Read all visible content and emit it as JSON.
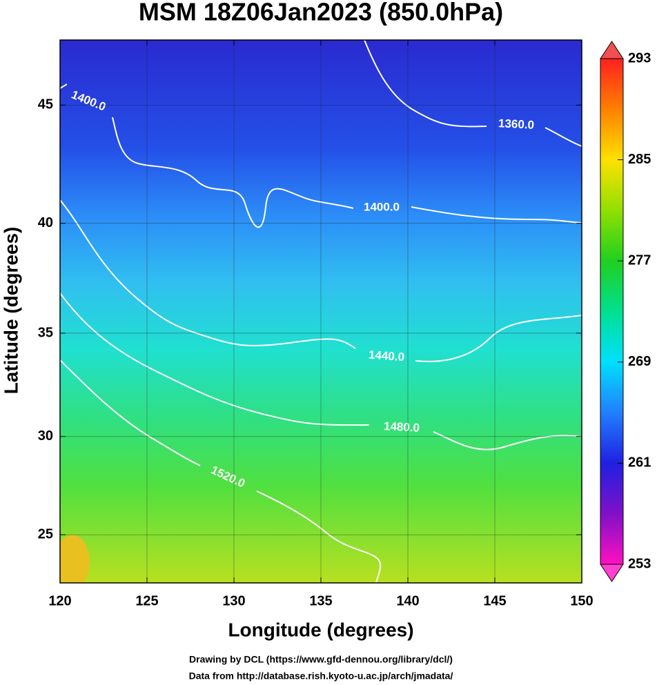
{
  "chart_data": {
    "type": "map",
    "title": "MSM 18Z06Jan2023 (850.0hPa)",
    "x_label": "Longitude (degrees)",
    "y_label": "Latitude  (degrees)",
    "projection": "mercator",
    "xlim": [
      120,
      150
    ],
    "ylim": [
      22.47,
      47.58
    ],
    "xticks": [
      120,
      125,
      130,
      135,
      140,
      145,
      150
    ],
    "yticks": [
      25,
      30,
      35,
      40,
      45
    ],
    "grid": true,
    "colorbar": {
      "range": [
        253,
        293
      ],
      "ticks": [
        253,
        261,
        269,
        277,
        285,
        293
      ]
    },
    "contours": [
      {
        "value": 1360,
        "label": "1360.0"
      },
      {
        "value": 1400,
        "label": "1400.0"
      },
      {
        "value": 1400,
        "label": "1400.0"
      },
      {
        "value": 1440,
        "label": "1440.0"
      },
      {
        "value": 1480,
        "label": "1480.0"
      },
      {
        "value": 1520,
        "label": "1520.0"
      }
    ],
    "credits": [
      "Drawing by DCL (https://www.gfd-dennou.org/library/dcl/)",
      "Data from http://database.rish.kyoto-u.ac.jp/arch/jmadata/"
    ]
  }
}
